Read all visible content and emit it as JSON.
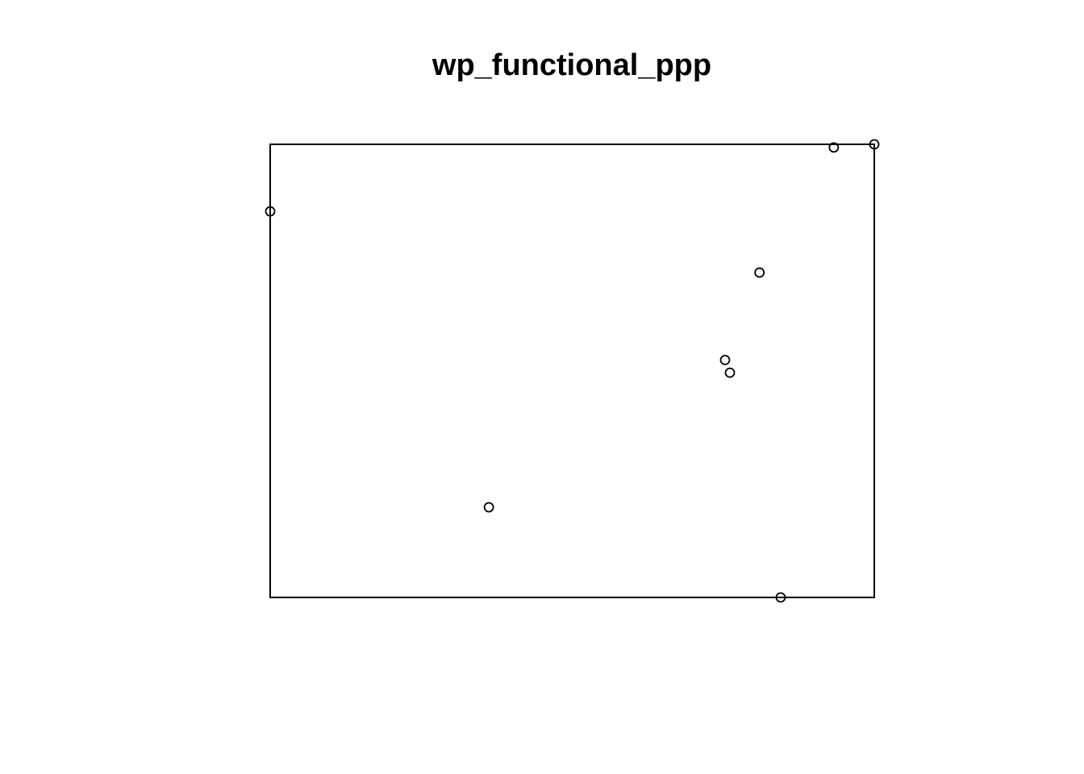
{
  "chart_data": {
    "type": "scatter",
    "title": "wp_functional_ppp",
    "xlabel": "",
    "ylabel": "",
    "xlim": [
      0,
      1
    ],
    "ylim": [
      0,
      1
    ],
    "axes_visible": false,
    "grid": false,
    "legend": "none",
    "window": "rectangle",
    "marker": "open-circle",
    "colors": {
      "stroke": "#000000",
      "background": "#ffffff"
    },
    "points": [
      {
        "x": 0.0,
        "y": 0.852
      },
      {
        "x": 0.933,
        "y": 0.993
      },
      {
        "x": 1.0,
        "y": 1.0
      },
      {
        "x": 0.81,
        "y": 0.717
      },
      {
        "x": 0.753,
        "y": 0.524
      },
      {
        "x": 0.761,
        "y": 0.496
      },
      {
        "x": 0.362,
        "y": 0.199
      },
      {
        "x": 0.845,
        "y": 0.0
      }
    ]
  }
}
